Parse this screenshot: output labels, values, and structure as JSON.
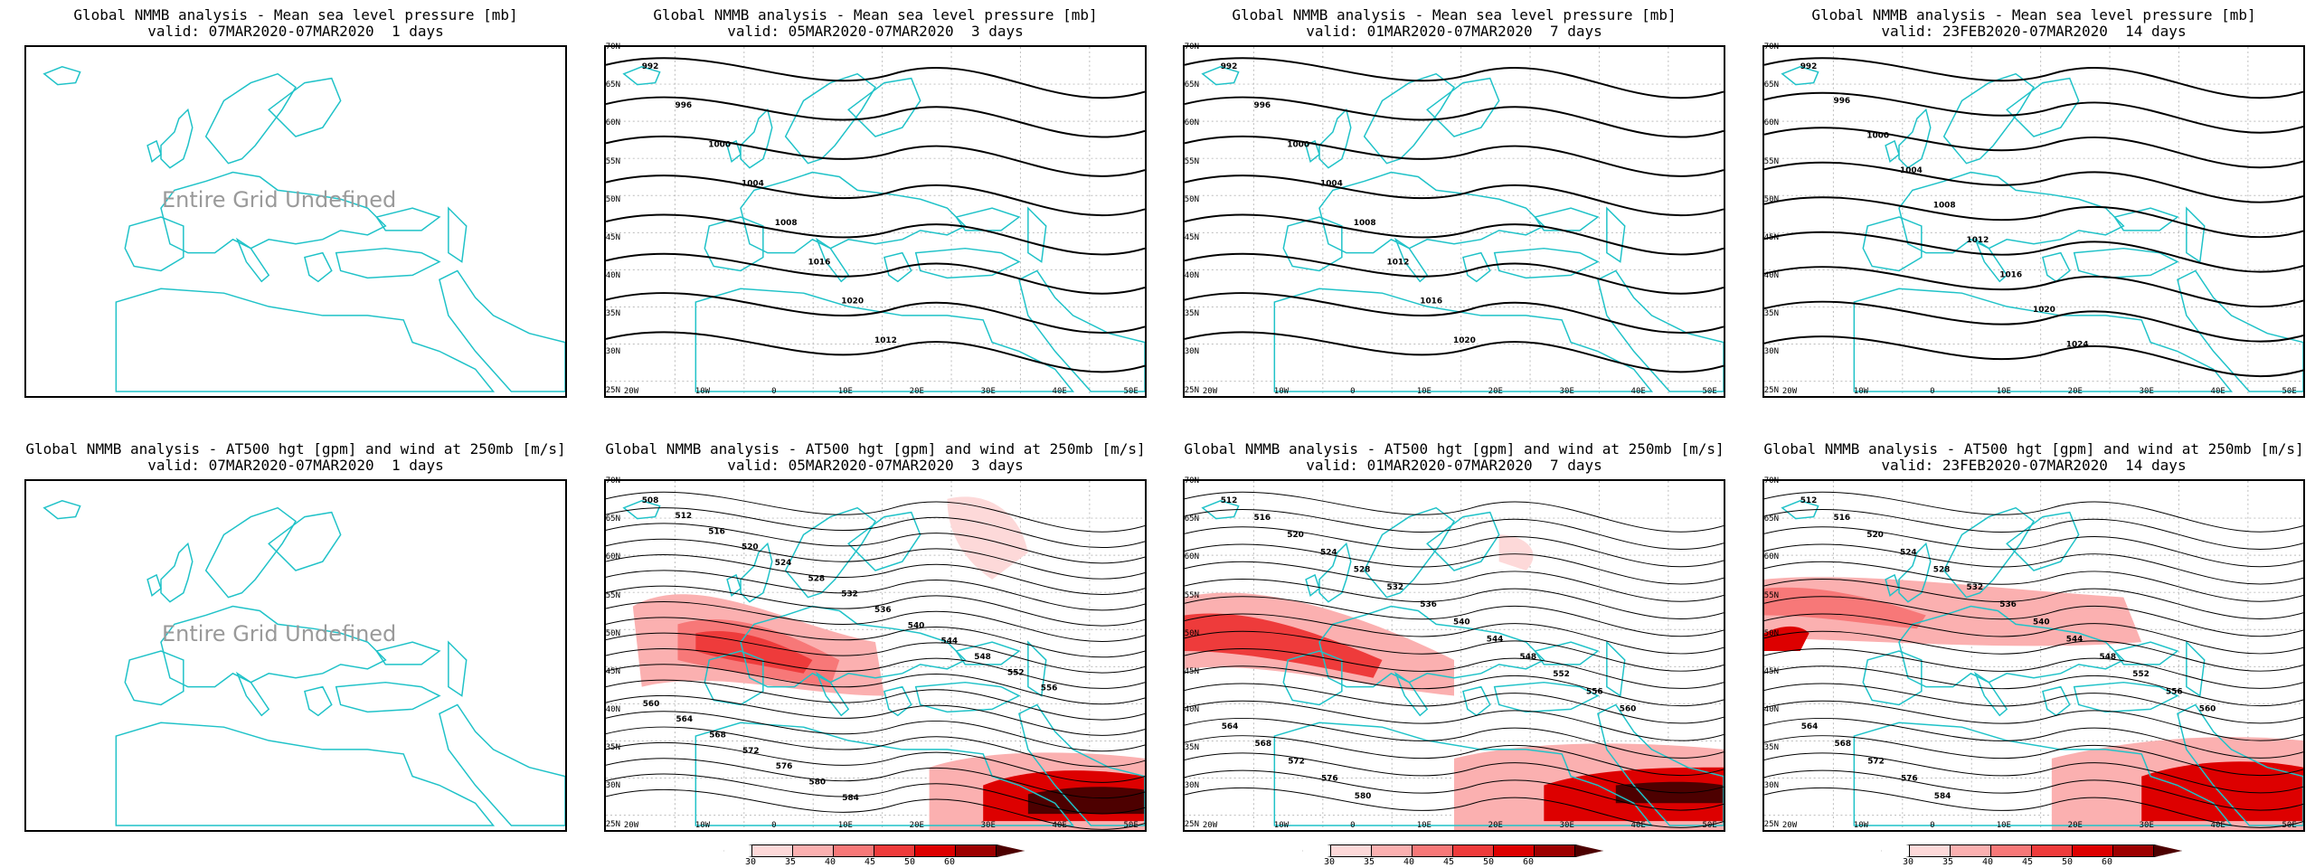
{
  "mslp_row": [
    {
      "line1": "Global NMMB analysis - Mean sea level pressure [mb]",
      "line2": "valid: 07MAR2020-07MAR2020  1 days",
      "undefined_text": "Entire Grid Undefined",
      "labels": []
    },
    {
      "line1": "Global NMMB analysis - Mean sea level pressure [mb]",
      "line2": "valid: 05MAR2020-07MAR2020  3 days",
      "labels": [
        "992",
        "996",
        "1000",
        "1004",
        "1008",
        "1016",
        "1020",
        "1012"
      ]
    },
    {
      "line1": "Global NMMB analysis - Mean sea level pressure [mb]",
      "line2": "valid: 01MAR2020-07MAR2020  7 days",
      "labels": [
        "992",
        "996",
        "1000",
        "1004",
        "1008",
        "1012",
        "1016",
        "1020"
      ]
    },
    {
      "line1": "Global NMMB analysis - Mean sea level pressure [mb]",
      "line2": "valid: 23FEB2020-07MAR2020  14 days",
      "labels": [
        "992",
        "996",
        "1000",
        "1004",
        "1008",
        "1012",
        "1016",
        "1020",
        "1024"
      ]
    }
  ],
  "hgt_row": [
    {
      "line1": "Global NMMB analysis - AT500 hgt [gpm] and wind at 250mb [m/s]",
      "line2": "valid: 07MAR2020-07MAR2020  1 days",
      "undefined_text": "Entire Grid Undefined",
      "labels": []
    },
    {
      "line1": "Global NMMB analysis - AT500 hgt [gpm] and wind at 250mb [m/s]",
      "line2": "valid: 05MAR2020-07MAR2020  3 days",
      "labels": [
        "508",
        "512",
        "516",
        "520",
        "524",
        "528",
        "532",
        "536",
        "540",
        "544",
        "548",
        "552",
        "556",
        "560",
        "564",
        "568",
        "572",
        "576",
        "580",
        "584"
      ]
    },
    {
      "line1": "Global NMMB analysis - AT500 hgt [gpm] and wind at 250mb [m/s]",
      "line2": "valid: 01MAR2020-07MAR2020  7 days",
      "labels": [
        "512",
        "516",
        "520",
        "524",
        "528",
        "532",
        "536",
        "540",
        "544",
        "548",
        "552",
        "556",
        "560",
        "564",
        "568",
        "572",
        "576",
        "580"
      ]
    },
    {
      "line1": "Global NMMB analysis - AT500 hgt [gpm] and wind at 250mb [m/s]",
      "line2": "valid: 23FEB2020-07MAR2020  14 days",
      "labels": [
        "512",
        "516",
        "520",
        "524",
        "528",
        "532",
        "536",
        "540",
        "544",
        "548",
        "552",
        "556",
        "560",
        "564",
        "568",
        "572",
        "576",
        "584"
      ]
    }
  ],
  "lat_ticks": [
    "70N",
    "65N",
    "60N",
    "55N",
    "50N",
    "45N",
    "40N",
    "35N",
    "30N",
    "25N"
  ],
  "lon_ticks": [
    "20W",
    "10W",
    "0",
    "10E",
    "20E",
    "30E",
    "40E",
    "50E"
  ],
  "colorbar": {
    "labels": [
      "30",
      "35",
      "40",
      "45",
      "50",
      "60"
    ],
    "colors": [
      "#ffffff",
      "#fdd9d9",
      "#fbb0b0",
      "#f77878",
      "#ee3b3b",
      "#dd0000",
      "#9d0000",
      "#4d0000"
    ]
  },
  "colors": {
    "coast": "#1fc2c8",
    "contour": "#000000",
    "undefined": "#9a9a9a"
  }
}
